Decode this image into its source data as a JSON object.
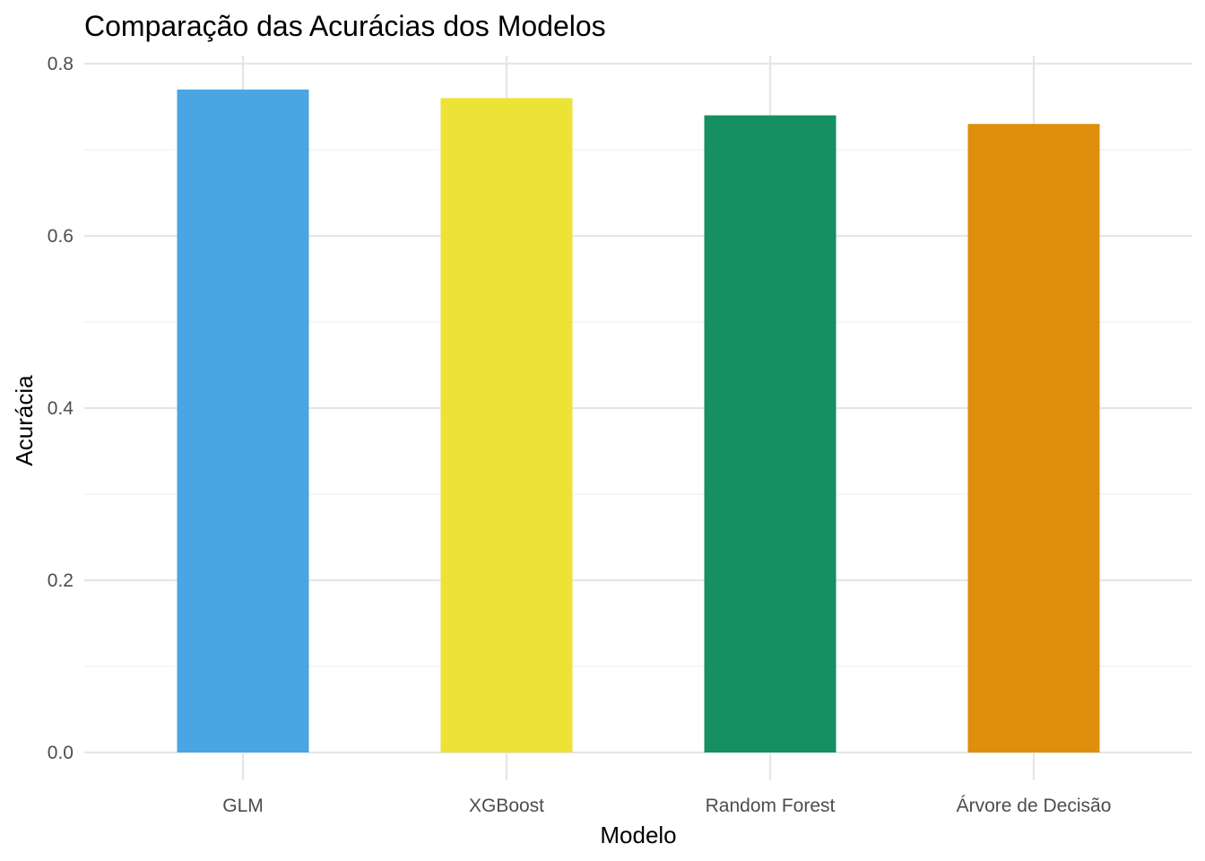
{
  "chart_data": {
    "type": "bar",
    "title": "Comparação das Acurácias dos Modelos",
    "xlabel": "Modelo",
    "ylabel": "Acurácia",
    "categories": [
      "GLM",
      "XGBoost",
      "Random Forest",
      "Árvore de Decisão"
    ],
    "values": [
      0.77,
      0.76,
      0.74,
      0.73
    ],
    "colors": [
      "#4AA5E3",
      "#EDE236",
      "#168F62",
      "#DF8F0B"
    ],
    "ylim": [
      0,
      0.8
    ],
    "yticks": [
      "0.0",
      "0.2",
      "0.4",
      "0.6",
      "0.8"
    ],
    "grid": true,
    "legend": "none"
  }
}
